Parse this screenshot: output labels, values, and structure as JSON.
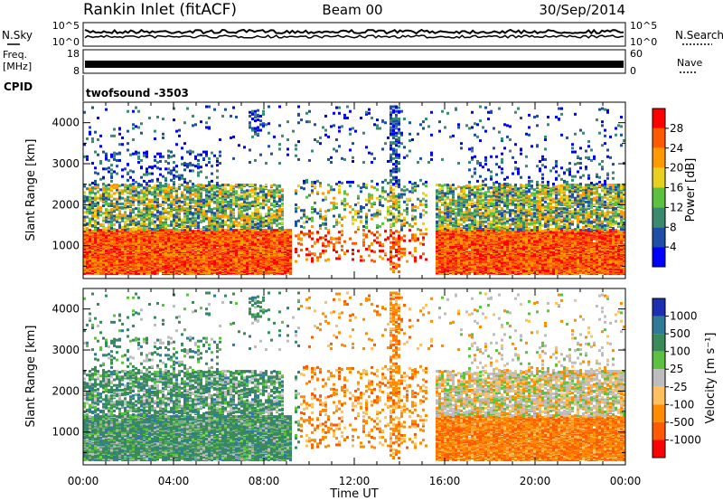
{
  "header": {
    "title": "Rankin Inlet (fitACF)",
    "beam": "Beam 00",
    "date": "30/Sep/2014"
  },
  "top_panels": {
    "nsky_label": "N.Sky",
    "nsky_ticks": [
      "10^5",
      "10^0"
    ],
    "nsearch_label": "N.Search",
    "nsearch_ticks": [
      "10^5",
      "10^0"
    ],
    "freq_label_1": "Freq.",
    "freq_label_2": "[MHz]",
    "freq_ticks": [
      "18",
      "8"
    ],
    "nave_label": "Nave",
    "nave_ticks": [
      "60",
      "0"
    ],
    "cpid_label": "CPID",
    "cpid_value": "twofsound -3503"
  },
  "chart_data": [
    {
      "type": "heatmap",
      "name": "power",
      "ylabel": "Slant Range [km]",
      "yticks": [
        "1000",
        "2000",
        "3000",
        "4000"
      ],
      "ylim": [
        200,
        4500
      ],
      "xlim": [
        0,
        24
      ],
      "colorbar_label": "Power [dB]",
      "colorbar_ticks": [
        "4",
        "8",
        "12",
        "16",
        "20",
        "24",
        "28"
      ],
      "colors": [
        "#0000ff",
        "#1f4ea8",
        "#3a8a6e",
        "#5cc040",
        "#e8d020",
        "#ff9a00",
        "#ff5a00",
        "#ff0000"
      ]
    },
    {
      "type": "heatmap",
      "name": "velocity",
      "ylabel": "Slant Range [km]",
      "yticks": [
        "1000",
        "2000",
        "3000",
        "4000"
      ],
      "ylim": [
        200,
        4500
      ],
      "xlim": [
        0,
        24
      ],
      "colorbar_label": "Velocity [m s⁻¹]",
      "colorbar_ticks": [
        "1000",
        "500",
        "100",
        "25",
        "-25",
        "-100",
        "-500",
        "-1000"
      ],
      "colors": [
        "#1c2fb0",
        "#2f7a96",
        "#3a8a5a",
        "#5cc040",
        "#bdbdbd",
        "#ffc060",
        "#ff8c00",
        "#ff5a00",
        "#ff0000"
      ]
    }
  ],
  "xaxis": {
    "ticks": [
      "00:00",
      "04:00",
      "08:00",
      "12:00",
      "16:00",
      "20:00",
      "00:00"
    ],
    "label": "Time UT"
  }
}
